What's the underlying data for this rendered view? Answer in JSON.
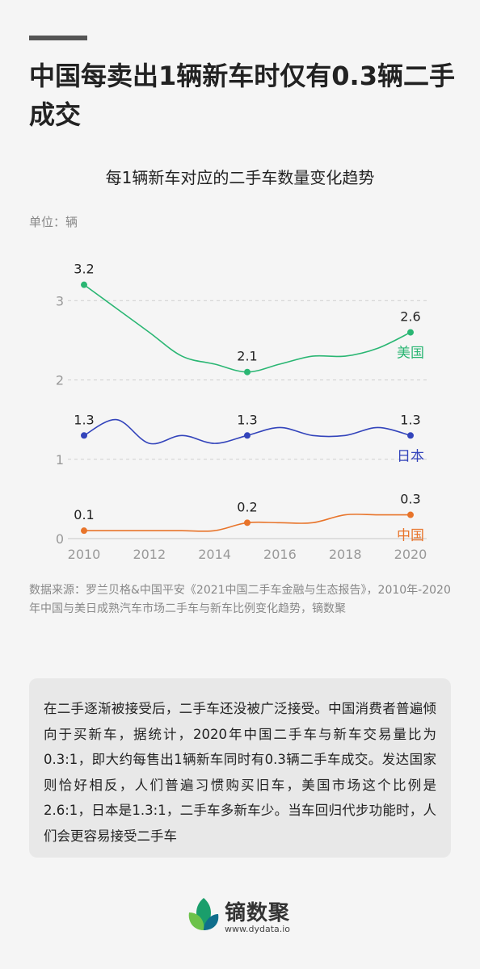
{
  "header": {
    "headline": "中国每卖出1辆新车时仅有0.3辆二手成交"
  },
  "chart_data": {
    "type": "line",
    "title": "每1辆新车对应的二手车数量变化趋势",
    "unit_label": "单位：辆",
    "x_ticks": [
      2010,
      2012,
      2014,
      2016,
      2018,
      2020
    ],
    "y_ticks": [
      0,
      1,
      2,
      3
    ],
    "xlim": [
      2010,
      2020
    ],
    "ylim": [
      0,
      3.4
    ],
    "grid": "horizontal-dashed",
    "series": [
      {
        "name": "美国",
        "color": "#2ab673",
        "x": [
          2010,
          2011,
          2012,
          2013,
          2014,
          2015,
          2016,
          2017,
          2018,
          2019,
          2020
        ],
        "y": [
          3.2,
          2.9,
          2.6,
          2.3,
          2.2,
          2.1,
          2.2,
          2.3,
          2.3,
          2.4,
          2.6
        ],
        "labels": [
          {
            "x": 2010,
            "y": 3.2,
            "text": "3.2"
          },
          {
            "x": 2015,
            "y": 2.1,
            "text": "2.1"
          },
          {
            "x": 2020,
            "y": 2.6,
            "text": "2.6"
          }
        ]
      },
      {
        "name": "日本",
        "color": "#3344bb",
        "x": [
          2010,
          2011,
          2012,
          2013,
          2014,
          2015,
          2016,
          2017,
          2018,
          2019,
          2020
        ],
        "y": [
          1.3,
          1.5,
          1.2,
          1.3,
          1.2,
          1.3,
          1.4,
          1.3,
          1.3,
          1.4,
          1.3
        ],
        "labels": [
          {
            "x": 2010,
            "y": 1.3,
            "text": "1.3"
          },
          {
            "x": 2015,
            "y": 1.3,
            "text": "1.3"
          },
          {
            "x": 2020,
            "y": 1.3,
            "text": "1.3"
          }
        ]
      },
      {
        "name": "中国",
        "color": "#e8742a",
        "x": [
          2010,
          2011,
          2012,
          2013,
          2014,
          2015,
          2016,
          2017,
          2018,
          2019,
          2020
        ],
        "y": [
          0.1,
          0.1,
          0.1,
          0.1,
          0.1,
          0.2,
          0.2,
          0.2,
          0.3,
          0.3,
          0.3
        ],
        "labels": [
          {
            "x": 2010,
            "y": 0.1,
            "text": "0.1"
          },
          {
            "x": 2015,
            "y": 0.2,
            "text": "0.2"
          },
          {
            "x": 2020,
            "y": 0.3,
            "text": "0.3"
          }
        ]
      }
    ]
  },
  "source": {
    "text": "数据来源：罗兰贝格&中国平安《2021中国二手车金融与生态报告》，2010年-2020年中国与美日成熟汽车市场二手车与新车比例变化趋势，镝数聚"
  },
  "note": {
    "text": "在二手逐渐被接受后，二手车还没被广泛接受。中国消费者普遍倾向于买新车，据统计，2020年中国二手车与新车交易量比为0.3:1，即大约每售出1辆新车同时有0.3辆二手车成交。发达国家则恰好相反，人们普遍习惯购买旧车，美国市场这个比例是2.6:1，日本是1.3:1，二手车多新车少。当车回归代步功能时，人们会更容易接受二手车"
  },
  "footer": {
    "brand": "镝数聚",
    "url": "www.dydata.io",
    "logo_colors": [
      "#1a9e6b",
      "#6cc24a",
      "#0f6e8c"
    ]
  }
}
